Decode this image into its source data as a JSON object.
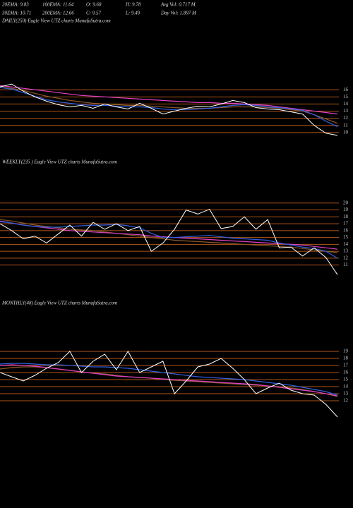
{
  "header": {
    "stats": [
      [
        "20EMA: 9.83",
        "100EMA: 11.64",
        "O: 9.60",
        "H: 9.78",
        "Avg Vol: 0.717 M"
      ],
      [
        "30EMA: 10.71",
        "200EMA: 12.66",
        "C: 9.57",
        "L: 9.49",
        "Day Vol: 1.897 M"
      ]
    ]
  },
  "chart_data": [
    {
      "type": "line",
      "title": "DAILY(250) Eagle  View  UTZ charts MunafaSutra.com",
      "ylim": [
        8.3,
        18.2
      ],
      "yticks": [
        10,
        11,
        12,
        13,
        14,
        15,
        16
      ],
      "grid": true,
      "grid_color": "#b0561a",
      "series": [
        {
          "color": "#8a5a2b",
          "values": [
            16.5,
            16.2,
            15.9,
            15.5,
            15.1,
            14.8,
            14.5,
            14.3,
            14.1,
            14.0,
            13.9,
            13.8,
            13.8,
            13.7,
            13.6,
            13.5,
            13.4,
            13.4,
            13.4,
            13.5,
            13.6,
            13.6,
            13.6,
            13.5,
            13.4,
            13.2,
            13.0,
            12.5,
            11.9,
            11.3
          ]
        },
        {
          "color": "#e040c8",
          "values": [
            16.6,
            16.4,
            16.2,
            16.0,
            15.8,
            15.6,
            15.4,
            15.2,
            15.1,
            15.0,
            14.9,
            14.8,
            14.7,
            14.6,
            14.5,
            14.4,
            14.3,
            14.2,
            14.2,
            14.1,
            14.1,
            14.0,
            13.9,
            13.8,
            13.6,
            13.4,
            13.2,
            13.0,
            12.8,
            12.6
          ]
        },
        {
          "color": "#2f5fe0",
          "values": [
            16.3,
            16.1,
            15.6,
            15.1,
            14.6,
            14.3,
            14.1,
            13.9,
            13.8,
            13.8,
            13.7,
            13.6,
            13.6,
            13.5,
            13.3,
            13.2,
            13.2,
            13.3,
            13.4,
            13.6,
            13.8,
            13.9,
            13.8,
            13.6,
            13.5,
            13.3,
            13.1,
            12.5,
            11.6,
            10.8
          ]
        },
        {
          "color": "#ffffff",
          "values": [
            16.4,
            16.8,
            15.8,
            15.0,
            14.4,
            13.9,
            13.6,
            13.8,
            13.4,
            14.0,
            13.6,
            13.3,
            14.1,
            13.4,
            12.6,
            13.0,
            13.4,
            13.7,
            13.6,
            14.0,
            14.5,
            14.2,
            13.5,
            13.3,
            13.2,
            12.9,
            12.6,
            11.0,
            9.9,
            9.6
          ]
        }
      ]
    },
    {
      "type": "line",
      "title": "WEEKLY(235  ) Eagle  View  UTZ charts MunafaSutra.com",
      "ylim": [
        8.5,
        20.8
      ],
      "yticks": [
        11,
        12,
        13,
        14,
        15,
        16,
        17,
        18,
        19,
        20
      ],
      "grid": true,
      "grid_color": "#b0561a",
      "series": [
        {
          "color": "#8a5a2b",
          "values": [
            17.6,
            17.4,
            17.1,
            16.8,
            16.6,
            16.4,
            16.2,
            16.1,
            16.0,
            15.8,
            15.6,
            15.4,
            15.2,
            15.0,
            14.8,
            14.6,
            14.5,
            14.4,
            14.3,
            14.2,
            14.1,
            14.0,
            13.9,
            13.8,
            13.7,
            13.6,
            13.4,
            13.2,
            13.0,
            12.8
          ]
        },
        {
          "color": "#e040c8",
          "values": [
            17.4,
            17.1,
            16.8,
            16.6,
            16.4,
            16.2,
            16.0,
            15.9,
            15.8,
            15.7,
            15.6,
            15.5,
            15.4,
            15.2,
            15.1,
            15.0,
            14.9,
            14.8,
            14.7,
            14.6,
            14.5,
            14.4,
            14.3,
            14.2,
            14.1,
            14.0,
            13.9,
            13.7,
            13.5,
            13.3
          ]
        },
        {
          "color": "#2f5fe0",
          "values": [
            17.3,
            17.1,
            16.8,
            16.6,
            16.5,
            16.5,
            16.6,
            16.7,
            16.8,
            16.8,
            16.9,
            16.7,
            16.4,
            15.6,
            15.0,
            15.0,
            15.1,
            15.2,
            15.3,
            15.1,
            14.9,
            14.8,
            14.7,
            14.6,
            14.2,
            13.9,
            13.6,
            13.4,
            13.0,
            12.0
          ]
        },
        {
          "color": "#ffffff",
          "values": [
            17.0,
            16.0,
            14.8,
            15.2,
            14.2,
            15.5,
            16.8,
            15.2,
            17.2,
            16.2,
            17.0,
            16.0,
            16.6,
            13.0,
            14.2,
            16.2,
            19.0,
            18.4,
            19.1,
            16.3,
            16.6,
            18.0,
            16.2,
            17.6,
            13.5,
            13.6,
            12.3,
            13.5,
            12.1,
            9.6
          ]
        }
      ]
    },
    {
      "type": "line",
      "title": "MONTHLY(48) Eagle  View  UTZ charts MunafaSutra.com",
      "ylim": [
        8.8,
        19.8
      ],
      "yticks": [
        12,
        13,
        14,
        15,
        16,
        17,
        18,
        19
      ],
      "grid": true,
      "grid_color": "#b0561a",
      "series": [
        {
          "color": "#8a5a2b",
          "values": [
            16.5,
            16.7,
            16.8,
            16.8,
            16.7,
            16.5,
            16.3,
            16.1,
            15.9,
            15.8,
            15.6,
            15.4,
            15.3,
            15.2,
            15.0,
            14.9,
            14.8,
            14.7,
            14.6,
            14.5,
            14.4,
            14.3,
            14.2,
            14.1,
            14.0,
            13.8,
            13.6,
            13.3,
            13.0,
            12.6
          ]
        },
        {
          "color": "#e040c8",
          "values": [
            17.0,
            17.1,
            17.0,
            16.9,
            16.7,
            16.5,
            16.3,
            16.1,
            15.9,
            15.7,
            15.5,
            15.4,
            15.3,
            15.2,
            15.1,
            15.0,
            14.9,
            14.8,
            14.7,
            14.6,
            14.5,
            14.4,
            14.3,
            14.1,
            13.9,
            13.7,
            13.5,
            13.3,
            13.0,
            12.7
          ]
        },
        {
          "color": "#2f5fe0",
          "values": [
            17.2,
            17.3,
            17.3,
            17.2,
            17.1,
            17.1,
            17.0,
            16.9,
            16.8,
            16.8,
            16.7,
            16.6,
            16.4,
            16.2,
            16.0,
            15.8,
            15.6,
            15.4,
            15.3,
            15.2,
            15.1,
            15.0,
            14.8,
            14.6,
            14.4,
            14.2,
            13.9,
            13.6,
            13.3,
            12.8
          ]
        },
        {
          "color": "#ffffff",
          "values": [
            16.0,
            15.4,
            14.8,
            15.6,
            16.6,
            17.4,
            19.0,
            16.0,
            17.6,
            18.6,
            16.4,
            19.0,
            16.0,
            16.8,
            17.6,
            13.0,
            14.8,
            16.8,
            17.2,
            18.0,
            16.6,
            15.0,
            13.0,
            13.8,
            14.5,
            13.5,
            13.0,
            12.8,
            11.5,
            9.7
          ]
        }
      ]
    }
  ]
}
